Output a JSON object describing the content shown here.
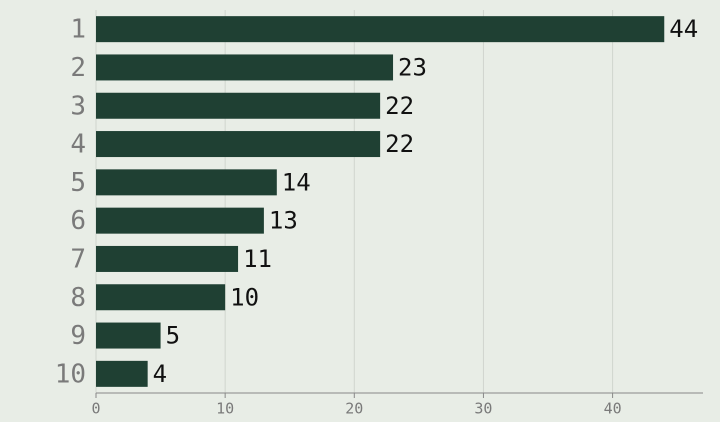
{
  "chart_data": {
    "type": "bar",
    "orientation": "horizontal",
    "categories": [
      "1",
      "2",
      "3",
      "4",
      "5",
      "6",
      "7",
      "8",
      "9",
      "10"
    ],
    "values": [
      44,
      23,
      22,
      22,
      14,
      13,
      11,
      10,
      5,
      4
    ],
    "color": "#1f4033",
    "xlim": [
      0,
      47
    ],
    "xticks": [
      0,
      10,
      20,
      30,
      40
    ],
    "grid": true
  }
}
